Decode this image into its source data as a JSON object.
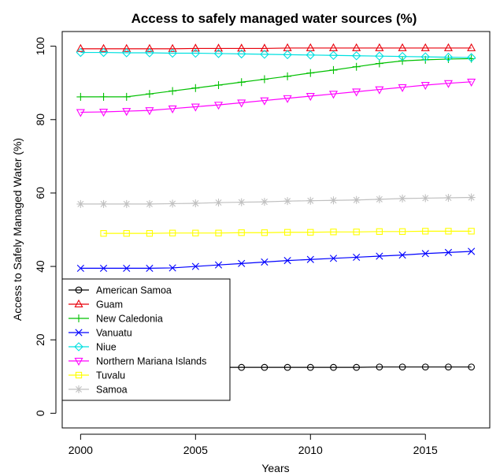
{
  "chart_data": {
    "type": "line",
    "title": "Access to safely managed water sources (%)",
    "xlabel": "Years",
    "ylabel": "Access to Safely Managed Water (%)",
    "xlim": [
      1999.2,
      2017.8
    ],
    "ylim": [
      -4,
      104
    ],
    "xticks": [
      2000,
      2005,
      2010,
      2015
    ],
    "yticks": [
      0,
      20,
      40,
      60,
      80,
      100
    ],
    "grid": false,
    "legend_position": "bottom-left",
    "x": [
      2000,
      2001,
      2002,
      2003,
      2004,
      2005,
      2006,
      2007,
      2008,
      2009,
      2010,
      2011,
      2012,
      2013,
      2014,
      2015,
      2016,
      2017
    ],
    "series": [
      {
        "name": "American Samoa",
        "color": "#000000",
        "marker": "circle",
        "values": [
          null,
          null,
          null,
          null,
          null,
          null,
          12.5,
          12.5,
          12.5,
          12.5,
          12.5,
          12.5,
          12.5,
          12.6,
          12.6,
          12.6,
          12.6,
          12.6
        ]
      },
      {
        "name": "Guam",
        "color": "#e8000b",
        "marker": "triangle-up",
        "values": [
          99.3,
          99.3,
          99.3,
          99.3,
          99.3,
          99.4,
          99.4,
          99.4,
          99.4,
          99.5,
          99.5,
          99.5,
          99.5,
          99.5,
          99.5,
          99.5,
          99.5,
          99.5
        ]
      },
      {
        "name": "New Caledonia",
        "color": "#00c000",
        "marker": "plus",
        "values": [
          86.2,
          86.2,
          86.2,
          87.0,
          87.8,
          88.6,
          89.4,
          90.2,
          91.0,
          91.8,
          92.7,
          93.5,
          94.4,
          95.3,
          96.0,
          96.3,
          96.5,
          96.6
        ]
      },
      {
        "name": "Vanuatu",
        "color": "#0000ff",
        "marker": "x",
        "values": [
          39.5,
          39.5,
          39.5,
          39.5,
          39.6,
          40.0,
          40.4,
          40.8,
          41.2,
          41.6,
          41.9,
          42.2,
          42.5,
          42.8,
          43.1,
          43.5,
          43.8,
          44.1
        ]
      },
      {
        "name": "Niue",
        "color": "#00e0e0",
        "marker": "diamond",
        "values": [
          98.3,
          98.3,
          98.2,
          98.2,
          98.1,
          98.1,
          98.0,
          97.9,
          97.8,
          97.7,
          97.6,
          97.5,
          97.4,
          97.3,
          97.2,
          97.1,
          97.0,
          96.9
        ]
      },
      {
        "name": "Northern Mariana Islands",
        "color": "#ff00ff",
        "marker": "triangle-down",
        "values": [
          82.0,
          82.1,
          82.3,
          82.5,
          83.0,
          83.5,
          84.0,
          84.6,
          85.2,
          85.8,
          86.4,
          87.0,
          87.6,
          88.2,
          88.8,
          89.4,
          89.9,
          90.3
        ]
      },
      {
        "name": "Tuvalu",
        "color": "#ffff00",
        "marker": "square",
        "values": [
          null,
          49.0,
          49.0,
          49.0,
          49.1,
          49.1,
          49.1,
          49.2,
          49.2,
          49.3,
          49.3,
          49.4,
          49.4,
          49.5,
          49.5,
          49.6,
          49.6,
          49.6
        ]
      },
      {
        "name": "Samoa",
        "color": "#c0c0c0",
        "marker": "asterisk",
        "values": [
          57.0,
          57.0,
          57.0,
          57.0,
          57.1,
          57.2,
          57.4,
          57.5,
          57.6,
          57.8,
          57.9,
          58.0,
          58.1,
          58.3,
          58.5,
          58.6,
          58.7,
          58.8
        ]
      }
    ]
  }
}
